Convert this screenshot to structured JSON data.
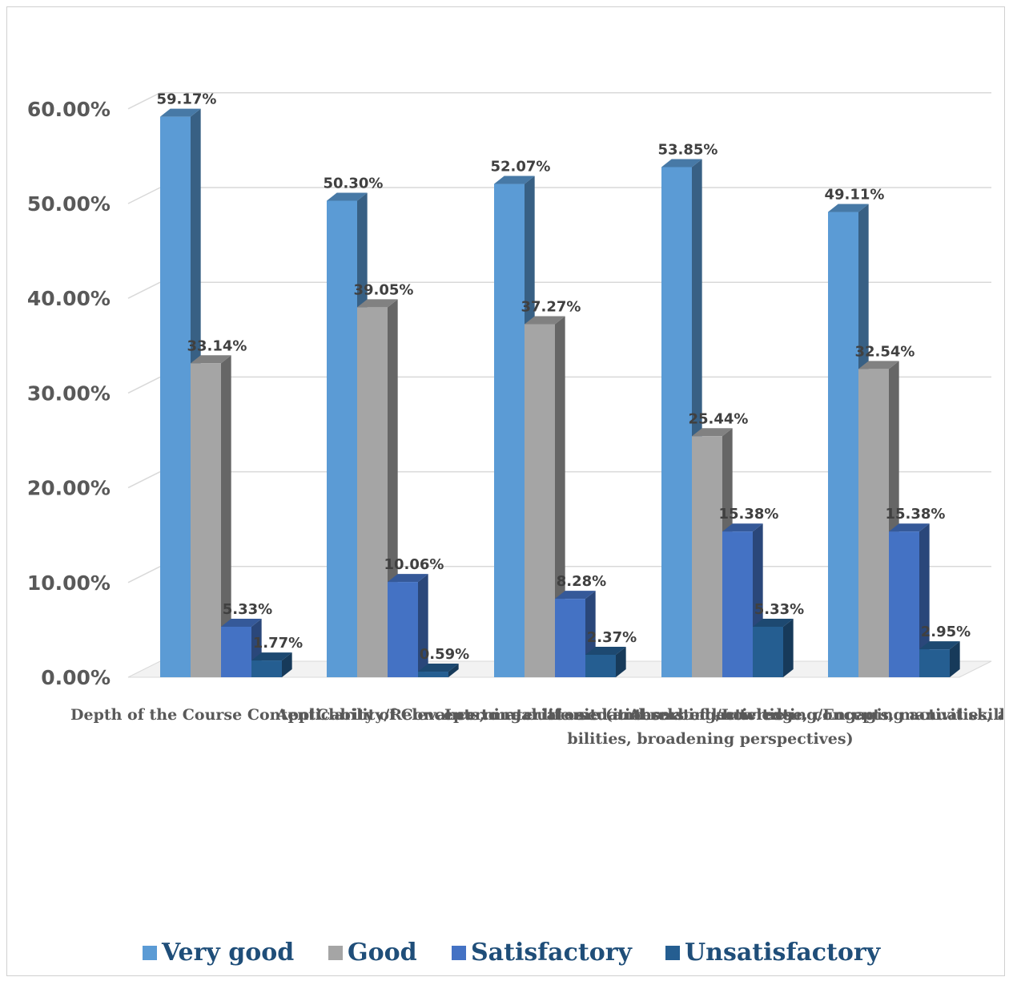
{
  "chart_data": {
    "type": "bar",
    "style": "3d-clustered-column",
    "categories": [
      "Depth of the Course Content",
      "Applicability/Relevance to real life situations",
      "Clarity of Concepts, material used and related activities",
      "Learning outcome (in terms of knowledge, concepts, manual skill, abilities, broadening perspectives)",
      "Absorbing/Interesting/Engaging activities, abilities, broadening perspectives)"
    ],
    "category_labels_visible": [
      "Depth of the Course Con",
      "veyageedffacility/Relevance to real life situations",
      "Gerapplication to knowledge/concepts, manual skill, a",
      "bilities, broadening perspectives)",
      ""
    ],
    "series": [
      {
        "name": "Very good",
        "color": "#5b9bd5",
        "values": [
          59.17,
          50.3,
          52.07,
          53.85,
          49.11
        ]
      },
      {
        "name": "Good",
        "color": "#a5a5a5",
        "values": [
          33.14,
          39.05,
          37.27,
          25.44,
          32.54
        ]
      },
      {
        "name": "Satisfactory",
        "color": "#4472c4",
        "values": [
          5.33,
          10.06,
          8.28,
          15.38,
          15.38
        ]
      },
      {
        "name": "Unsatisfactory",
        "color": "#255e91",
        "values": [
          1.77,
          0.59,
          2.37,
          5.33,
          2.95
        ]
      }
    ],
    "data_labels": [
      [
        "59.17%",
        "33.14%",
        "5.33%",
        "1.77%"
      ],
      [
        "50.30%",
        "39.05%",
        "10.06%",
        "0.59%"
      ],
      [
        "52.07%",
        "37.27%",
        "8.28%",
        "2.37%"
      ],
      [
        "53.85%",
        "25.44%",
        "15.38%",
        "5.33%"
      ],
      [
        "49.11%",
        "32.54%",
        "15.38%",
        "2.95%"
      ]
    ],
    "y_ticks": [
      "0.00%",
      "10.00%",
      "20.00%",
      "30.00%",
      "40.00%",
      "50.00%",
      "60.00%"
    ],
    "ylim": [
      0,
      60
    ],
    "grid": true,
    "legend_position": "bottom",
    "title": "",
    "xlabel": "",
    "ylabel": ""
  }
}
